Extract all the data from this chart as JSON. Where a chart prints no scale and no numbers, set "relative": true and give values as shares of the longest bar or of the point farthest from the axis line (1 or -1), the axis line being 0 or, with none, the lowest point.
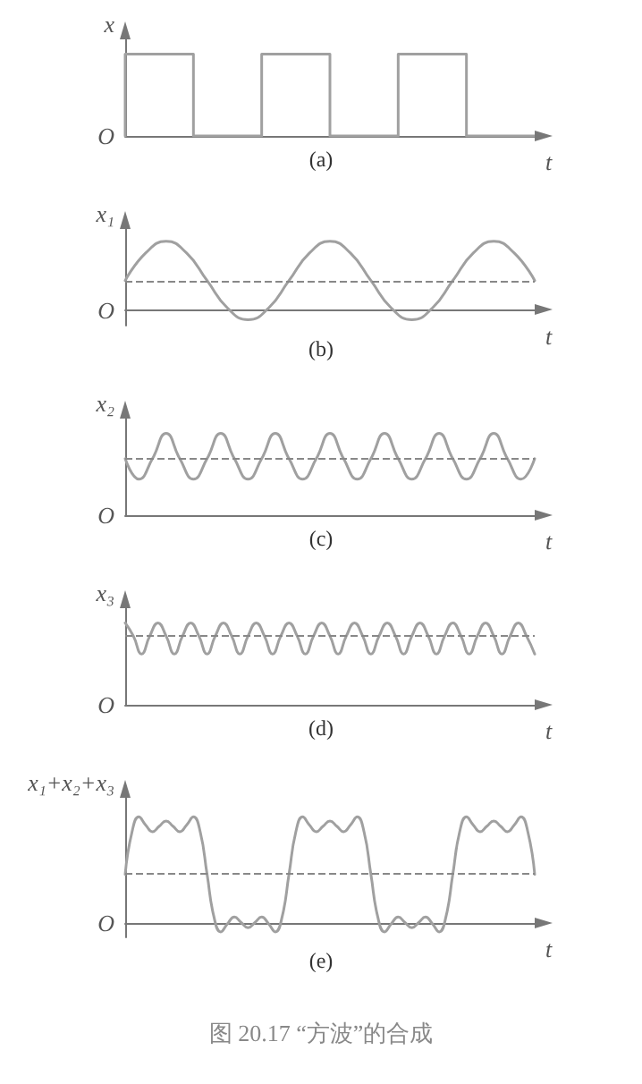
{
  "chart_data": [
    {
      "type": "step",
      "title": "(a)",
      "ylabel": "x",
      "xlabel": "t",
      "relative": true,
      "marker": "none",
      "line_style": "solid",
      "categories": [
        null,
        null,
        null,
        null,
        null,
        null,
        null
      ],
      "series": [
        {
          "color": "#a0a0a0",
          "values": [
            0,
            1,
            0,
            1,
            0,
            1,
            0
          ]
        }
      ],
      "annotations": [
        "O"
      ]
    },
    {
      "type": "line",
      "title": "(b)",
      "ylabel": "x₁",
      "xlabel": "t",
      "relative": true,
      "marker": "none",
      "line_style": "solid",
      "categories": [
        null,
        null,
        null,
        null,
        null,
        null,
        null,
        null,
        null,
        null,
        null,
        null,
        null,
        null,
        null,
        null,
        null,
        null,
        null,
        null,
        null
      ],
      "series": [
        {
          "color": "#a0a0a0",
          "values": [
            0.43,
            0.83,
            1,
            0.83,
            0.43,
            0.03,
            -0.14,
            0.03,
            0.43,
            0.83,
            1,
            0.83,
            0.43,
            0.03,
            -0.14,
            0.03,
            0.43,
            0.83,
            1,
            0.83,
            0.43
          ]
        }
      ],
      "ref_lines": [
        {
          "axis": "y",
          "value": 0.43,
          "color": "#888888",
          "line_style": "dashed"
        }
      ],
      "annotations": [
        "O"
      ]
    },
    {
      "type": "line",
      "title": "(c)",
      "ylabel": "x₂",
      "xlabel": "t",
      "relative": true,
      "marker": "none",
      "line_style": "solid",
      "categories": [
        null,
        null,
        null,
        null,
        null,
        null,
        null,
        null,
        null,
        null,
        null,
        null,
        null,
        null,
        null,
        null,
        null,
        null,
        null,
        null,
        null,
        null,
        null,
        null,
        null,
        null,
        null,
        null,
        null,
        null,
        null
      ],
      "series": [
        {
          "color": "#a0a0a0",
          "values": [
            0.69,
            0.44,
            0.69,
            1,
            0.69,
            0.44,
            0.69,
            1,
            0.69,
            0.44,
            0.69,
            1,
            0.69,
            0.44,
            0.69,
            1,
            0.69,
            0.44,
            0.69,
            1,
            0.69,
            0.44,
            0.69,
            1,
            0.69,
            0.44,
            0.69,
            1,
            0.69,
            0.44,
            0.69
          ]
        }
      ],
      "ref_lines": [
        {
          "axis": "y",
          "value": 0.69,
          "color": "#888888",
          "line_style": "dashed"
        }
      ],
      "annotations": [
        "O"
      ]
    },
    {
      "type": "line",
      "title": "(d)",
      "ylabel": "x₃",
      "xlabel": "t",
      "relative": true,
      "marker": "none",
      "line_style": "solid",
      "categories": [
        null,
        null,
        null,
        null,
        null,
        null,
        null,
        null,
        null,
        null,
        null,
        null,
        null,
        null,
        null,
        null,
        null,
        null,
        null,
        null,
        null,
        null,
        null,
        null,
        null,
        null,
        null,
        null,
        null,
        null,
        null,
        null,
        null,
        null,
        null,
        null,
        null,
        null,
        null,
        null,
        null,
        null,
        null,
        null,
        null,
        null,
        null,
        null,
        null,
        null,
        null
      ],
      "series": [
        {
          "color": "#a0a0a0",
          "values": [
            1,
            0.84,
            0.62,
            0.84,
            1,
            0.84,
            0.62,
            0.84,
            1,
            0.84,
            0.62,
            0.84,
            1,
            0.84,
            0.62,
            0.84,
            1,
            0.84,
            0.62,
            0.84,
            1,
            0.84,
            0.62,
            0.84,
            1,
            0.84,
            0.62,
            0.84,
            1,
            0.84,
            0.62,
            0.84,
            1,
            0.84,
            0.62,
            0.84,
            1,
            0.84,
            0.62,
            0.84,
            1,
            0.84,
            0.62,
            0.84,
            1,
            0.84,
            0.62,
            0.84,
            1,
            0.84,
            0.62
          ]
        }
      ],
      "ref_lines": [
        {
          "axis": "y",
          "value": 0.84,
          "color": "#888888",
          "line_style": "dashed"
        }
      ],
      "annotations": [
        "O"
      ]
    },
    {
      "type": "line",
      "title": "(e)",
      "ylabel": "x₁+x₂+x₃",
      "xlabel": "t",
      "relative": true,
      "marker": "none",
      "line_style": "solid",
      "categories": [
        null,
        null,
        null,
        null,
        null,
        null,
        null,
        null,
        null,
        null,
        null,
        null,
        null,
        null,
        null,
        null,
        null,
        null,
        null,
        null,
        null,
        null,
        null,
        null,
        null,
        null,
        null,
        null,
        null,
        null,
        null,
        null,
        null,
        null,
        null,
        null,
        null,
        null,
        null,
        null,
        null,
        null,
        null,
        null,
        null,
        null,
        null,
        null,
        null,
        null,
        null,
        null,
        null,
        null,
        null,
        null,
        null,
        null,
        null,
        null,
        null
      ],
      "series": [
        {
          "color": "#a0a0a0",
          "values": [
            0.457,
            0.857,
            1,
            0.923,
            0.86,
            0.912,
            0.961,
            0.912,
            0.86,
            0.923,
            1,
            0.857,
            0.457,
            0.057,
            -0.086,
            -0.009,
            0.054,
            0.002,
            -0.047,
            0.002,
            0.054,
            -0.009,
            -0.086,
            0.057,
            0.457,
            0.857,
            1,
            0.923,
            0.86,
            0.912,
            0.961,
            0.912,
            0.86,
            0.923,
            1,
            0.857,
            0.457,
            0.057,
            -0.086,
            -0.009,
            0.054,
            0.002,
            -0.047,
            0.002,
            0.054,
            -0.009,
            -0.086,
            0.057,
            0.457,
            0.857,
            1,
            0.923,
            0.86,
            0.912,
            0.961,
            0.912,
            0.86,
            0.923,
            1,
            0.857,
            0.457
          ]
        }
      ],
      "ref_lines": [
        {
          "axis": "y",
          "value": 0.457,
          "color": "#888888",
          "line_style": "dashed"
        }
      ],
      "annotations": [
        "O",
        "图 20.17 “方波”的合成"
      ]
    }
  ]
}
